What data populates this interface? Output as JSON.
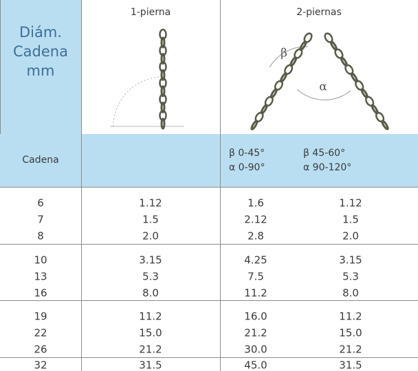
{
  "header": {
    "first_column": [
      "Diám.",
      "Cadena",
      "mm"
    ],
    "one_leg": "1-pierna",
    "two_legs": "2-piernas",
    "figure_labels": [
      "β",
      "α"
    ]
  },
  "subheader": {
    "first_column": "Cadena",
    "two_legs_a": [
      "β 0-45°",
      "α 0-90°"
    ],
    "two_legs_b": [
      "β 45-60°",
      "α 90-120°"
    ]
  },
  "table": {
    "groups": [
      [
        [
          "6",
          "1.12",
          "1.6",
          "1.12"
        ],
        [
          "7",
          "1.5",
          "2.12",
          "1.5"
        ],
        [
          "8",
          "2.0",
          "2.8",
          "2.0"
        ]
      ],
      [
        [
          "10",
          "3.15",
          "4.25",
          "3.15"
        ],
        [
          "13",
          "5.3",
          "7.5",
          "5.3"
        ],
        [
          "16",
          "8.0",
          "11.2",
          "8.0"
        ]
      ],
      [
        [
          "19",
          "11.2",
          "16.0",
          "11.2"
        ],
        [
          "22",
          "15.0",
          "21.2",
          "15.0"
        ],
        [
          "26",
          "21.2",
          "30.0",
          "21.2"
        ]
      ],
      [
        [
          "32",
          "31.5",
          "45.0",
          "31.5"
        ]
      ]
    ]
  }
}
